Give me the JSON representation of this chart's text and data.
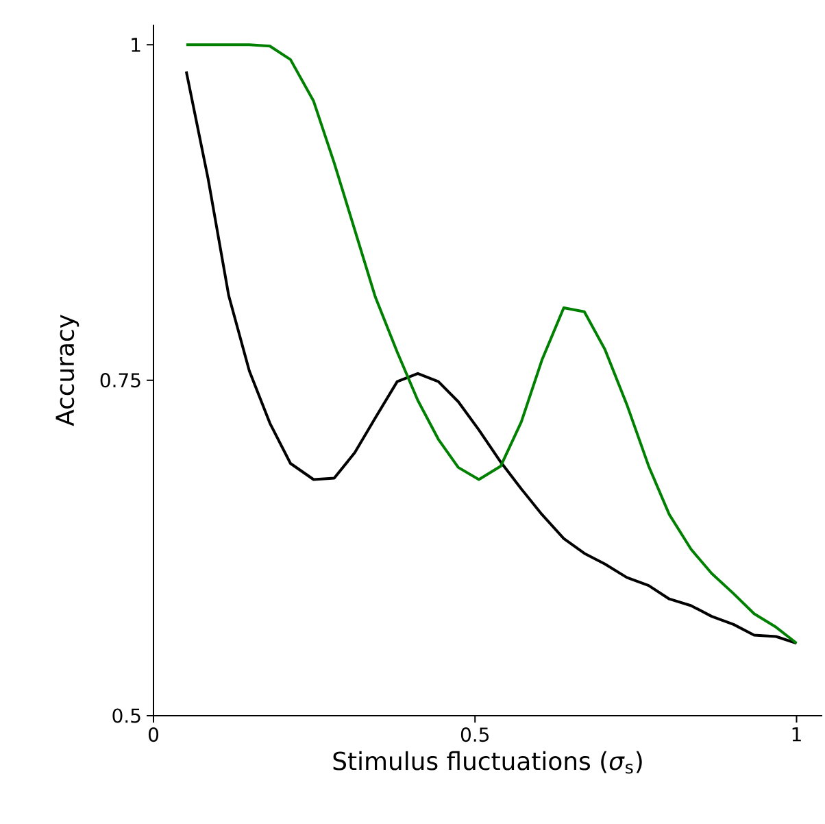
{
  "chart_data": {
    "type": "line",
    "xlabel": "Stimulus fluctuations (*σ*$_{s}$)",
    "ylabel": "Accuracy",
    "xlim": [
      0,
      1.04
    ],
    "ylim": [
      0.5,
      1.015
    ],
    "xticks": [
      0,
      0.5,
      1
    ],
    "yticks": [
      0.5,
      0.75,
      1
    ],
    "marker": "none",
    "line_style": "solid",
    "series": [
      {
        "color": "#000000",
        "x": [
          0.051,
          0.085,
          0.117,
          0.149,
          0.181,
          0.213,
          0.249,
          0.281,
          0.313,
          0.345,
          0.379,
          0.411,
          0.443,
          0.474,
          0.506,
          0.54,
          0.572,
          0.604,
          0.638,
          0.67,
          0.702,
          0.736,
          0.77,
          0.802,
          0.836,
          0.868,
          0.902,
          0.934,
          0.968,
          1.0
        ],
        "values": [
          0.98,
          0.9,
          0.813,
          0.757,
          0.718,
          0.688,
          0.676,
          0.677,
          0.696,
          0.722,
          0.749,
          0.755,
          0.749,
          0.734,
          0.713,
          0.689,
          0.669,
          0.65,
          0.632,
          0.621,
          0.613,
          0.603,
          0.597,
          0.587,
          0.582,
          0.574,
          0.568,
          0.56,
          0.559,
          0.554
        ]
      },
      {
        "color": "#008000",
        "x": [
          0.051,
          0.085,
          0.117,
          0.149,
          0.181,
          0.213,
          0.249,
          0.281,
          0.313,
          0.345,
          0.379,
          0.411,
          0.443,
          0.474,
          0.506,
          0.54,
          0.572,
          0.604,
          0.638,
          0.67,
          0.702,
          0.736,
          0.77,
          0.802,
          0.836,
          0.868,
          0.902,
          0.934,
          0.968,
          1.0
        ],
        "values": [
          1.0,
          1.0,
          1.0,
          1.0,
          0.999,
          0.989,
          0.958,
          0.912,
          0.862,
          0.812,
          0.771,
          0.735,
          0.706,
          0.685,
          0.676,
          0.686,
          0.719,
          0.765,
          0.804,
          0.801,
          0.773,
          0.732,
          0.686,
          0.65,
          0.624,
          0.606,
          0.591,
          0.576,
          0.566,
          0.554
        ]
      }
    ]
  }
}
